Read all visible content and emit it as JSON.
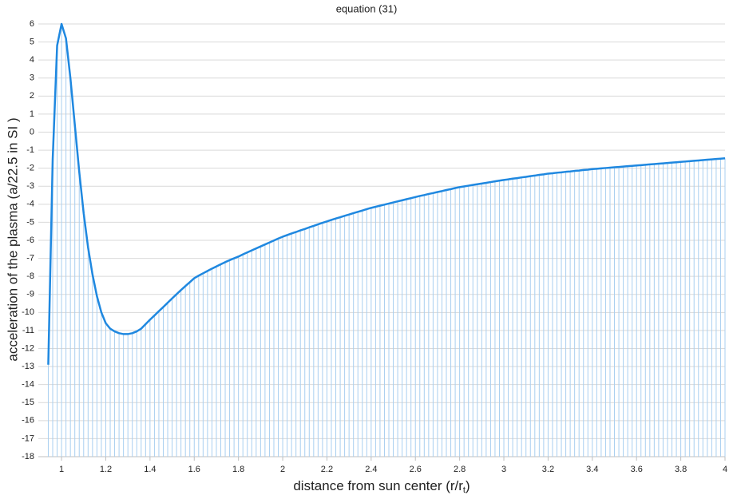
{
  "chart_data": {
    "type": "line",
    "title": "equation (31)",
    "x_label": {
      "main": "distance from sun center (r/r",
      "sub": "t",
      "end": ")"
    },
    "y_label": "acceleration of the plasma (a/22.5 in SI )",
    "x": [
      0.94,
      0.96,
      0.98,
      1.0,
      1.02,
      1.04,
      1.06,
      1.08,
      1.1,
      1.12,
      1.14,
      1.16,
      1.18,
      1.2,
      1.22,
      1.24,
      1.26,
      1.28,
      1.3,
      1.32,
      1.34,
      1.36,
      1.38,
      1.4,
      1.42,
      1.44,
      1.46,
      1.48,
      1.5,
      1.52,
      1.54,
      1.56,
      1.58,
      1.6,
      1.62,
      1.64,
      1.66,
      1.68,
      1.7,
      1.72,
      1.74,
      1.76,
      1.78,
      1.8,
      1.82,
      1.84,
      1.86,
      1.88,
      1.9,
      1.92,
      1.94,
      1.96,
      1.98,
      2.0,
      2.02,
      2.04,
      2.06,
      2.08,
      2.1,
      2.12,
      2.14,
      2.16,
      2.18,
      2.2,
      2.22,
      2.24,
      2.26,
      2.28,
      2.3,
      2.32,
      2.34,
      2.36,
      2.38,
      2.4,
      2.42,
      2.44,
      2.46,
      2.48,
      2.5,
      2.52,
      2.54,
      2.56,
      2.58,
      2.6,
      2.62,
      2.64,
      2.66,
      2.68,
      2.7,
      2.72,
      2.74,
      2.76,
      2.78,
      2.8,
      2.82,
      2.84,
      2.86,
      2.88,
      2.9,
      2.92,
      2.94,
      2.96,
      2.98,
      3.0,
      3.02,
      3.04,
      3.06,
      3.08,
      3.1,
      3.12,
      3.14,
      3.16,
      3.18,
      3.2,
      3.22,
      3.24,
      3.26,
      3.28,
      3.3,
      3.32,
      3.34,
      3.36,
      3.38,
      3.4,
      3.42,
      3.44,
      3.46,
      3.48,
      3.5,
      3.52,
      3.54,
      3.56,
      3.58,
      3.6,
      3.62,
      3.64,
      3.66,
      3.68,
      3.7,
      3.72,
      3.74,
      3.76,
      3.78,
      3.8,
      3.82,
      3.84,
      3.86,
      3.88,
      3.9,
      3.92,
      3.94,
      3.96,
      3.98,
      4.0
    ],
    "series": [
      {
        "name": "acceleration",
        "color": "#1f88e0",
        "drop_color": "#a9cff0",
        "values": [
          -12.9,
          -1.5,
          4.8,
          6.0,
          5.2,
          3.0,
          0.4,
          -2.2,
          -4.5,
          -6.4,
          -7.9,
          -9.1,
          -10.0,
          -10.6,
          -10.9,
          -11.05,
          -11.15,
          -11.2,
          -11.2,
          -11.15,
          -11.05,
          -10.9,
          -10.65,
          -10.4,
          -10.17,
          -9.93,
          -9.7,
          -9.46,
          -9.22,
          -8.99,
          -8.76,
          -8.54,
          -8.32,
          -8.1,
          -7.96,
          -7.83,
          -7.7,
          -7.57,
          -7.45,
          -7.33,
          -7.21,
          -7.1,
          -7.0,
          -6.9,
          -6.78,
          -6.67,
          -6.56,
          -6.45,
          -6.34,
          -6.23,
          -6.12,
          -6.01,
          -5.9,
          -5.8,
          -5.71,
          -5.62,
          -5.54,
          -5.45,
          -5.37,
          -5.28,
          -5.2,
          -5.11,
          -5.03,
          -4.95,
          -4.87,
          -4.79,
          -4.72,
          -4.64,
          -4.57,
          -4.49,
          -4.42,
          -4.35,
          -4.27,
          -4.2,
          -4.14,
          -4.08,
          -4.02,
          -3.96,
          -3.9,
          -3.84,
          -3.78,
          -3.72,
          -3.66,
          -3.6,
          -3.54,
          -3.49,
          -3.43,
          -3.38,
          -3.32,
          -3.27,
          -3.21,
          -3.16,
          -3.1,
          -3.05,
          -3.01,
          -2.97,
          -2.93,
          -2.89,
          -2.85,
          -2.81,
          -2.77,
          -2.73,
          -2.69,
          -2.65,
          -2.62,
          -2.58,
          -2.55,
          -2.51,
          -2.48,
          -2.44,
          -2.41,
          -2.37,
          -2.34,
          -2.3,
          -2.28,
          -2.25,
          -2.23,
          -2.2,
          -2.18,
          -2.15,
          -2.13,
          -2.1,
          -2.08,
          -2.05,
          -2.03,
          -2.01,
          -1.99,
          -1.97,
          -1.95,
          -1.93,
          -1.91,
          -1.89,
          -1.87,
          -1.85,
          -1.83,
          -1.81,
          -1.79,
          -1.77,
          -1.75,
          -1.73,
          -1.71,
          -1.69,
          -1.67,
          -1.65,
          -1.63,
          -1.61,
          -1.59,
          -1.57,
          -1.55,
          -1.53,
          -1.51,
          -1.49,
          -1.47,
          -1.45
        ]
      }
    ],
    "xlim": [
      0.895,
      4
    ],
    "xticks": [
      1,
      1.2,
      1.4,
      1.6,
      1.8,
      2,
      2.2,
      2.4,
      2.6,
      2.8,
      3,
      3.2,
      3.4,
      3.6,
      3.8,
      4
    ],
    "ylim": [
      -18,
      6
    ],
    "yticks": [
      -18,
      -17,
      -16,
      -15,
      -14,
      -13,
      -12,
      -11,
      -10,
      -9,
      -8,
      -7,
      -6,
      -5,
      -4,
      -3,
      -2,
      -1,
      0,
      1,
      2,
      3,
      4,
      5,
      6
    ],
    "grid": true,
    "drop_lines": true
  }
}
